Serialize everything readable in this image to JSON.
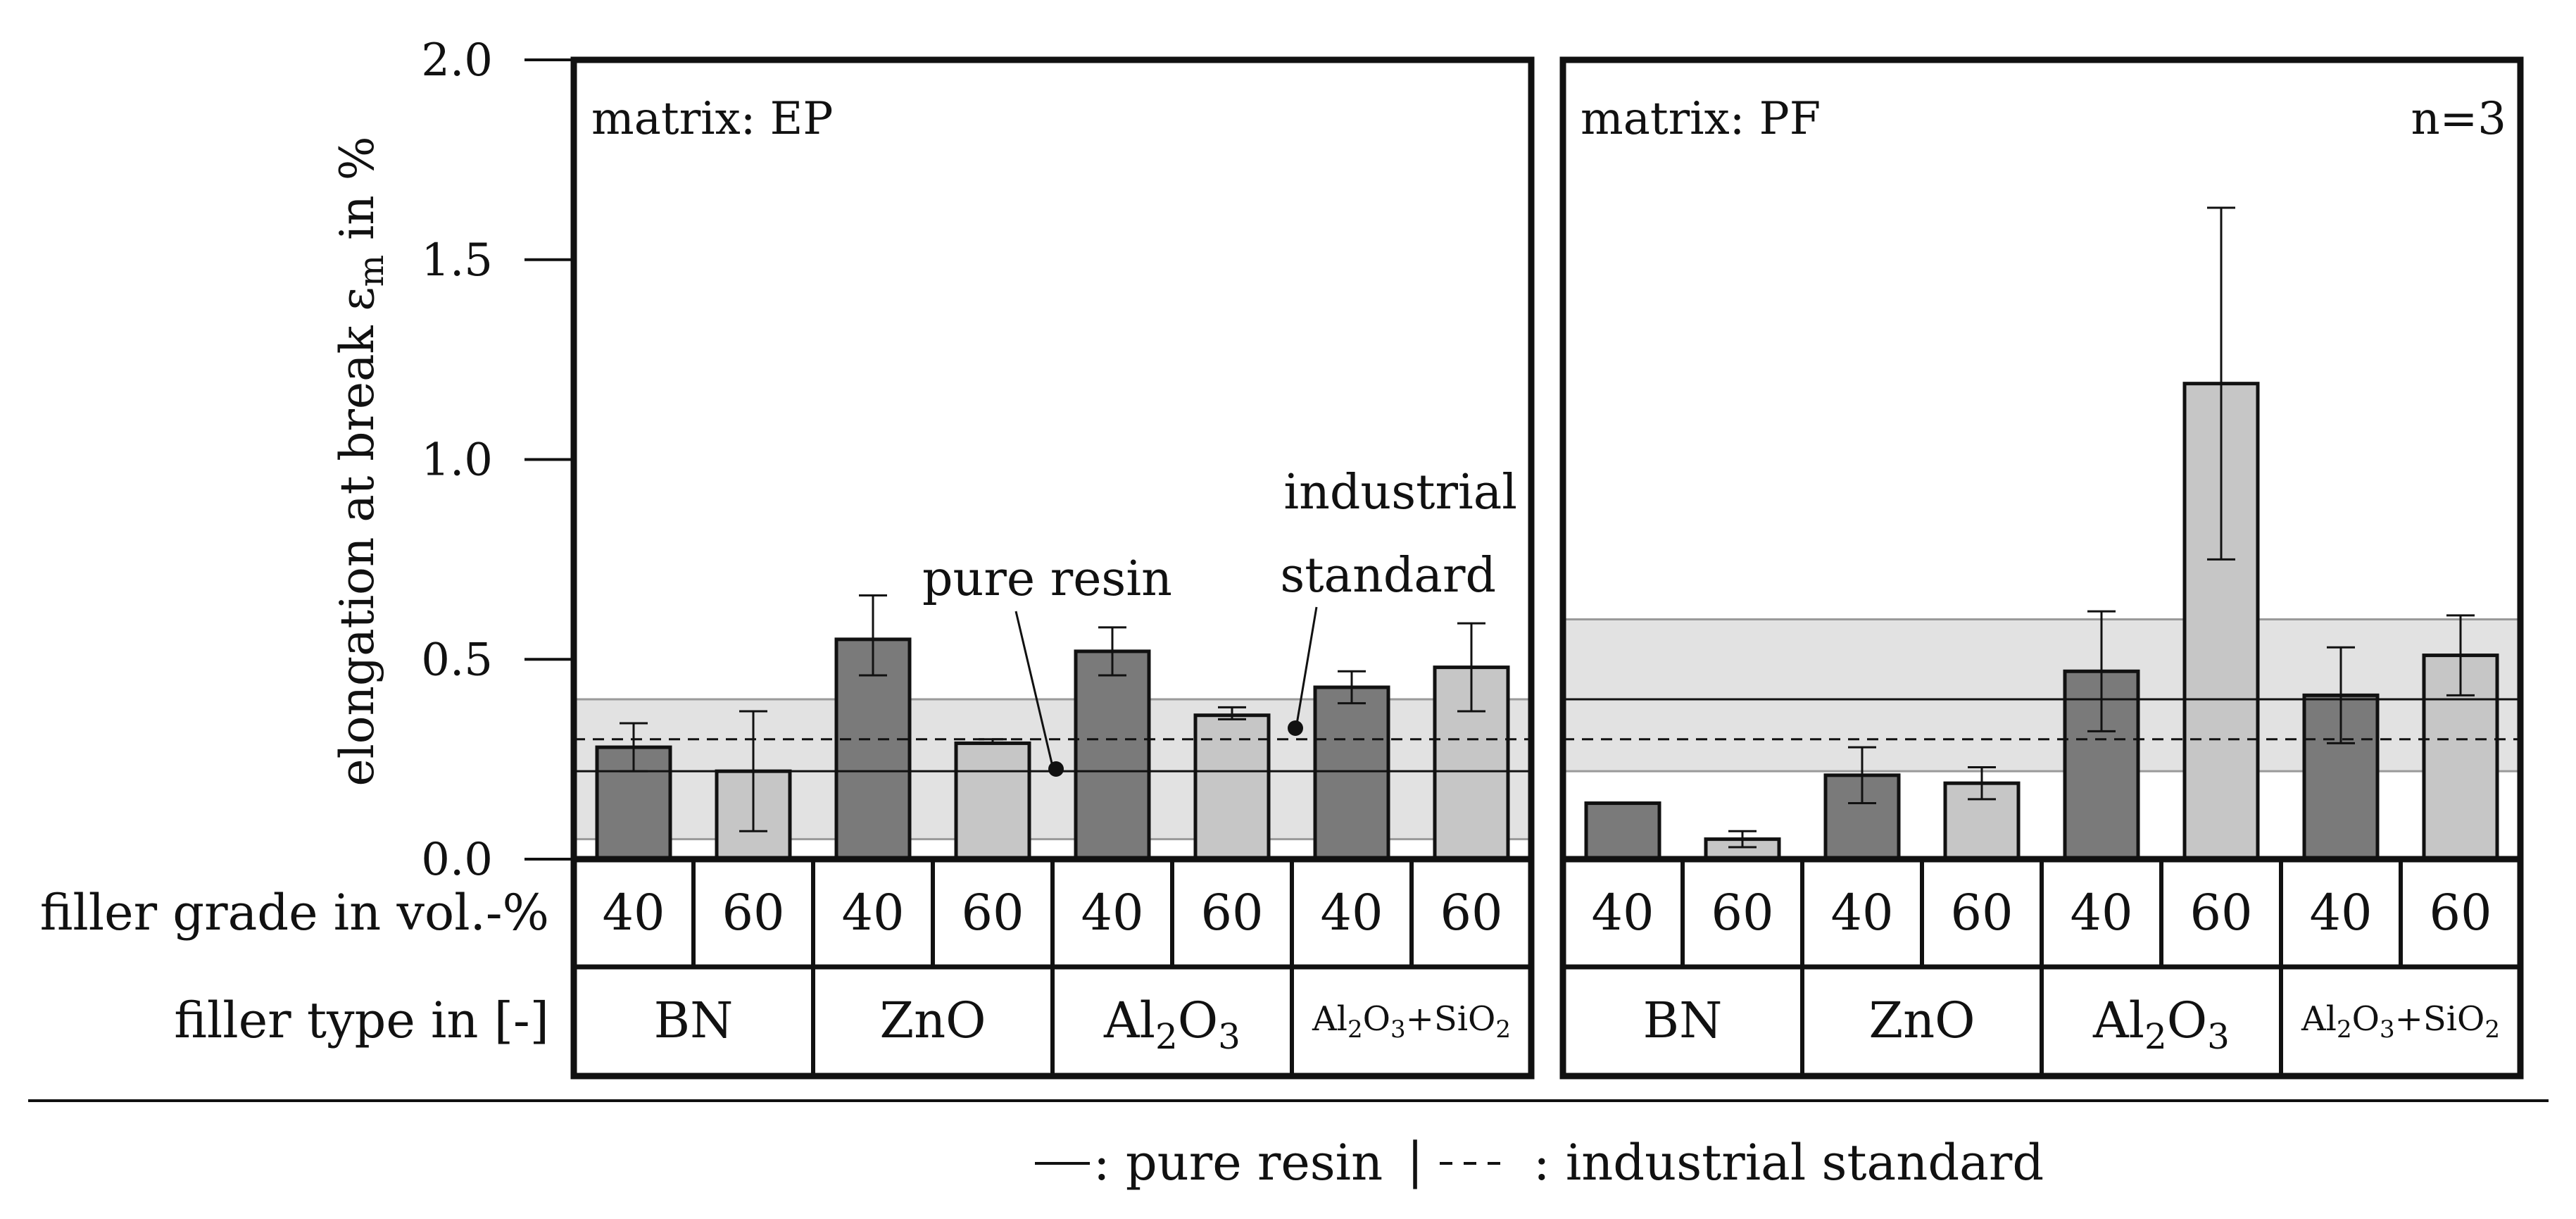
{
  "chart_data": {
    "type": "bar",
    "y_axis": {
      "label_main": "elongation at break ε",
      "label_sub": "m",
      "label_unit": " in %",
      "range": [
        0.0,
        2.0
      ],
      "ticks": [
        "0.0",
        "0.5",
        "1.0",
        "1.5",
        "2.0"
      ]
    },
    "row_labels": {
      "filler_grade": "filler grade in vol.-%",
      "filler_type": "filler type in [-]"
    },
    "filler_types": [
      {
        "name": "BN",
        "main": "BN",
        "parts": [
          {
            "t": "BN"
          }
        ],
        "small": false
      },
      {
        "name": "ZnO",
        "main": "ZnO",
        "parts": [
          {
            "t": "ZnO"
          }
        ],
        "small": false
      },
      {
        "name": "Al2O3",
        "main": "Al",
        "parts": [
          {
            "t": "Al"
          },
          {
            "t": "2",
            "sub": true
          },
          {
            "t": "O"
          },
          {
            "t": "3",
            "sub": true
          }
        ],
        "small": false
      },
      {
        "name": "Al2O3+SiO2",
        "main": "Al",
        "parts": [
          {
            "t": "Al"
          },
          {
            "t": "2",
            "sub": true
          },
          {
            "t": "O"
          },
          {
            "t": "3",
            "sub": true
          },
          {
            "t": "+SiO"
          },
          {
            "t": "2",
            "sub": true
          }
        ],
        "small": true
      }
    ],
    "filler_grades": [
      "40",
      "60"
    ],
    "panels": [
      {
        "label": "matrix: EP",
        "extra_label": "",
        "pure_resin": 0.22,
        "industrial_standard": 0.3,
        "industrial_band": [
          0.05,
          0.4
        ],
        "bars": [
          {
            "type": "BN",
            "grade": "40",
            "value": 0.28,
            "err_low": 0.22,
            "err_high": 0.34
          },
          {
            "type": "BN",
            "grade": "60",
            "value": 0.22,
            "err_low": 0.07,
            "err_high": 0.37
          },
          {
            "type": "ZnO",
            "grade": "40",
            "value": 0.55,
            "err_low": 0.46,
            "err_high": 0.66
          },
          {
            "type": "ZnO",
            "grade": "60",
            "value": 0.29,
            "err_low": 0.29,
            "err_high": 0.3
          },
          {
            "type": "Al2O3",
            "grade": "40",
            "value": 0.52,
            "err_low": 0.46,
            "err_high": 0.58
          },
          {
            "type": "Al2O3",
            "grade": "60",
            "value": 0.36,
            "err_low": 0.35,
            "err_high": 0.38
          },
          {
            "type": "Al2O3+SiO2",
            "grade": "40",
            "value": 0.43,
            "err_low": 0.39,
            "err_high": 0.47
          },
          {
            "type": "Al2O3+SiO2",
            "grade": "60",
            "value": 0.48,
            "err_low": 0.37,
            "err_high": 0.59
          }
        ]
      },
      {
        "label": "matrix: PF",
        "extra_label": "n=3",
        "pure_resin": 0.4,
        "industrial_standard": 0.3,
        "industrial_band": [
          0.22,
          0.6
        ],
        "bars": [
          {
            "type": "BN",
            "grade": "40",
            "value": 0.14,
            "err_low": 0.14,
            "err_high": 0.14
          },
          {
            "type": "BN",
            "grade": "60",
            "value": 0.05,
            "err_low": 0.03,
            "err_high": 0.07
          },
          {
            "type": "ZnO",
            "grade": "40",
            "value": 0.21,
            "err_low": 0.14,
            "err_high": 0.28
          },
          {
            "type": "ZnO",
            "grade": "60",
            "value": 0.19,
            "err_low": 0.15,
            "err_high": 0.23
          },
          {
            "type": "Al2O3",
            "grade": "40",
            "value": 0.47,
            "err_low": 0.32,
            "err_high": 0.62
          },
          {
            "type": "Al2O3",
            "grade": "60",
            "value": 1.19,
            "err_low": 0.75,
            "err_high": 1.63
          },
          {
            "type": "Al2O3+SiO2",
            "grade": "40",
            "value": 0.41,
            "err_low": 0.29,
            "err_high": 0.53
          },
          {
            "type": "Al2O3+SiO2",
            "grade": "60",
            "value": 0.51,
            "err_low": 0.41,
            "err_high": 0.61
          }
        ]
      }
    ],
    "annotations": {
      "pure_resin_label": "pure resin",
      "industrial_label_line1": "industrial",
      "industrial_label_line2": "standard"
    },
    "legend": {
      "pure_resin": ": pure resin",
      "industrial_standard": ": industrial standard",
      "separator": "|"
    },
    "colors": {
      "grade_40": "#7a7a7a",
      "grade_60": "#c6c6c6",
      "band": "#e2e2e2",
      "band_edge": "#9a9a9a",
      "frame": "#111111"
    }
  }
}
